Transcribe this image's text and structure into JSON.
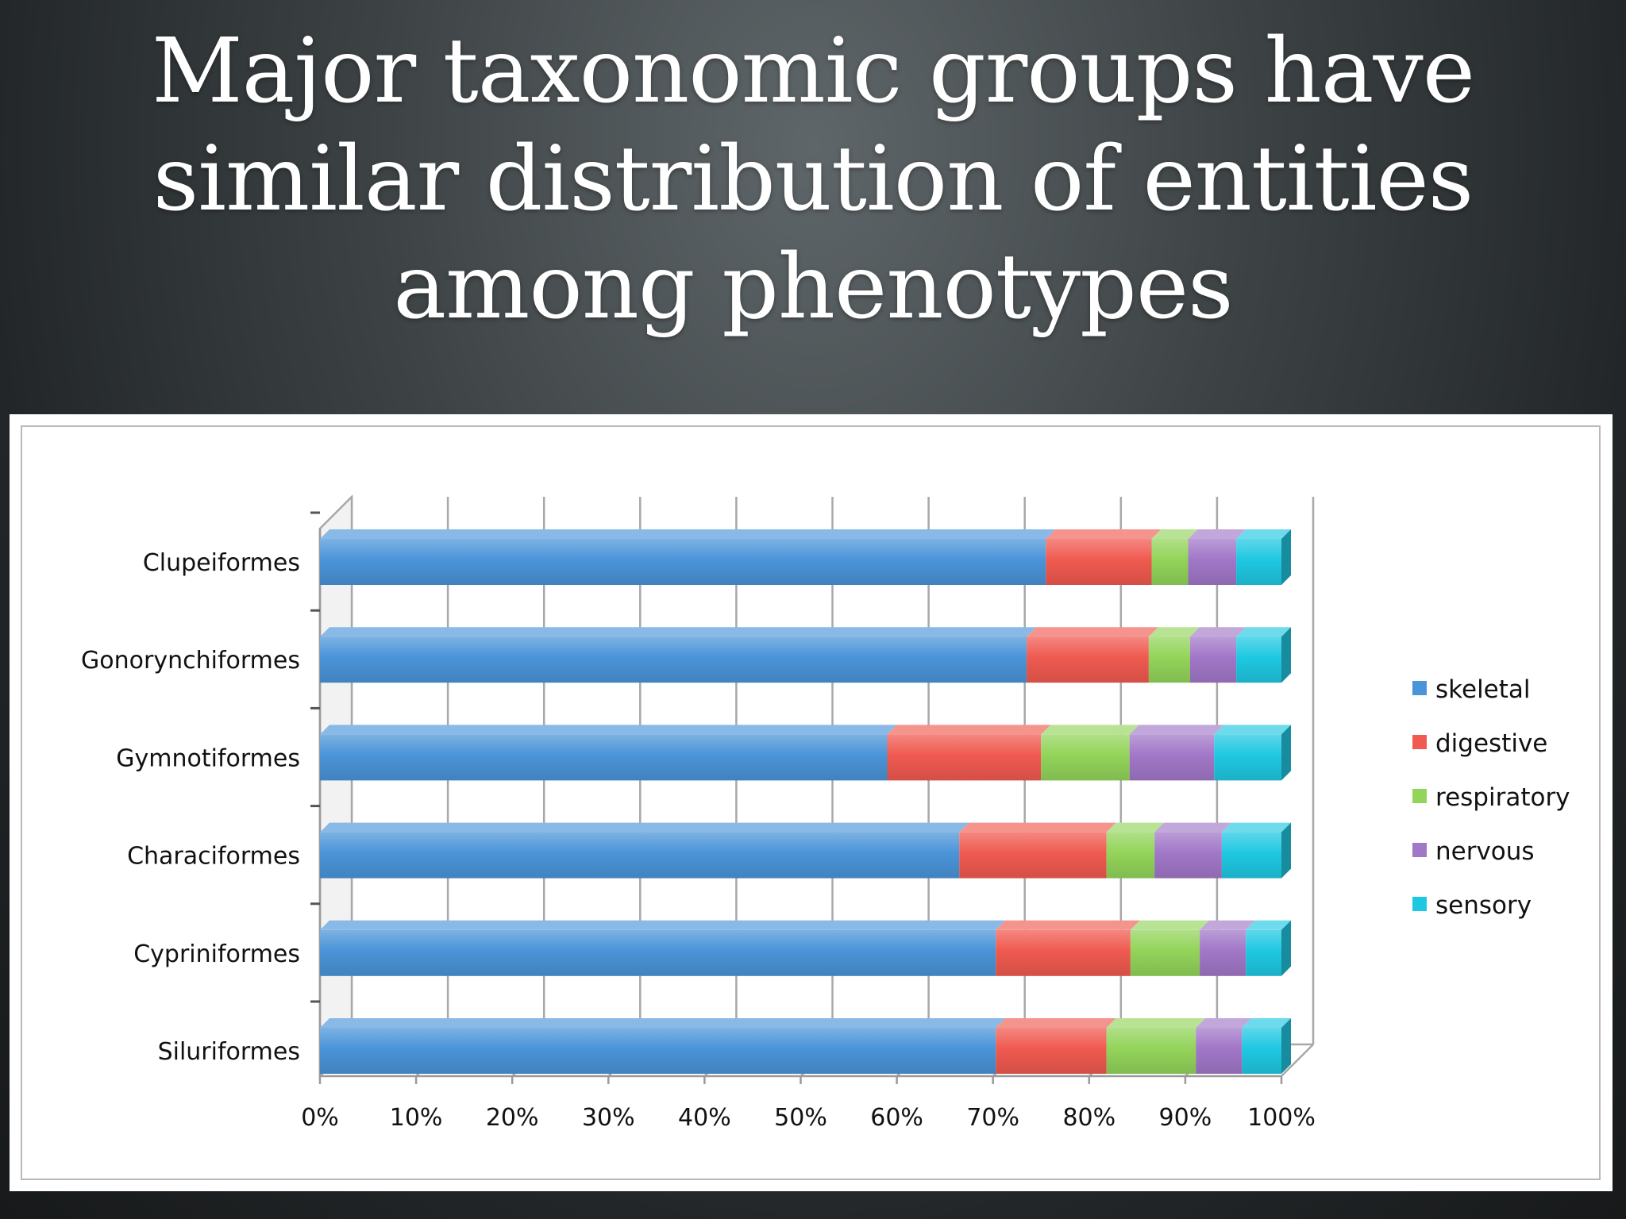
{
  "slide": {
    "title_lines": [
      "Major taxonomic groups have",
      "similar distribution of entities",
      "among phenotypes"
    ]
  },
  "chart_data": {
    "type": "bar",
    "orientation": "horizontal",
    "stacked": "percent",
    "title": "",
    "xlabel": "",
    "ylabel": "",
    "xlim": [
      0,
      100
    ],
    "x_ticks": [
      "0%",
      "10%",
      "20%",
      "30%",
      "40%",
      "50%",
      "60%",
      "70%",
      "80%",
      "90%",
      "100%"
    ],
    "grid": true,
    "legend_position": "right",
    "categories": [
      "Clupeiformes",
      "Gonorynchiformes",
      "Gymnotiformes",
      "Characiformes",
      "Cypriniformes",
      "Siluriformes"
    ],
    "series": [
      {
        "name": "skeletal",
        "color": "#4a94d8",
        "values": [
          75.5,
          73.5,
          59.0,
          66.5,
          70.3,
          70.3
        ]
      },
      {
        "name": "digestive",
        "color": "#f05a50",
        "values": [
          11.0,
          12.7,
          16.0,
          15.3,
          14.0,
          11.5
        ]
      },
      {
        "name": "respiratory",
        "color": "#93d45a",
        "values": [
          3.8,
          4.3,
          9.2,
          5.0,
          7.2,
          9.3
        ]
      },
      {
        "name": "nervous",
        "color": "#a177c8",
        "values": [
          5.0,
          4.8,
          8.8,
          7.0,
          4.8,
          4.8
        ]
      },
      {
        "name": "sensory",
        "color": "#1fc8e2",
        "values": [
          4.7,
          4.7,
          7.0,
          6.2,
          3.7,
          4.1
        ]
      }
    ]
  }
}
